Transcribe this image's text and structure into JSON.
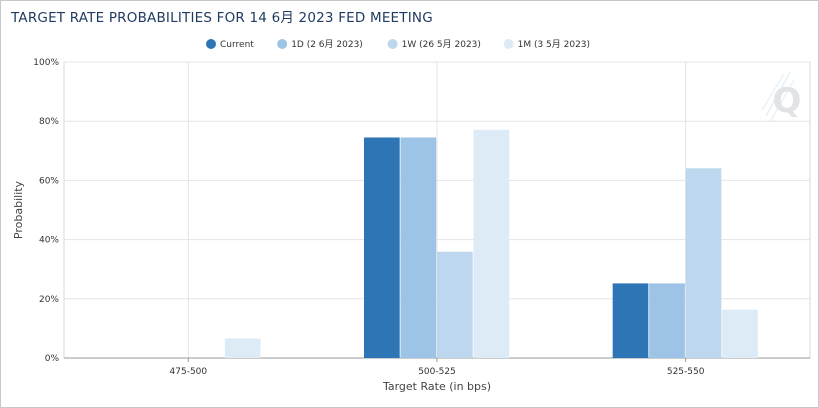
{
  "title": "TARGET RATE PROBABILITIES FOR 14 6月 2023 FED MEETING",
  "chart_data": {
    "type": "bar",
    "categories": [
      "475-500",
      "500-525",
      "525-550"
    ],
    "series": [
      {
        "name": "Current",
        "values": [
          0,
          74.5,
          25.2
        ],
        "color": "#2e75b6"
      },
      {
        "name": "1D (2 6月 2023)",
        "values": [
          0,
          74.5,
          25.2
        ],
        "color": "#9dc3e6"
      },
      {
        "name": "1W (26 5月 2023)",
        "values": [
          0,
          35.9,
          64.1
        ],
        "color": "#bdd7ee"
      },
      {
        "name": "1M (3 5月 2023)",
        "values": [
          6.6,
          77.1,
          16.3
        ],
        "color": "#ddebf7"
      }
    ],
    "xlabel": "Target Rate (in bps)",
    "ylabel": "Probability",
    "ylim": [
      0,
      100
    ],
    "yticks": [
      "0%",
      "20%",
      "40%",
      "60%",
      "80%",
      "100%"
    ],
    "ytick_values": [
      0,
      20,
      40,
      60,
      80,
      100
    ],
    "grid": true,
    "legend_position": "top-center"
  },
  "watermark": "Q"
}
